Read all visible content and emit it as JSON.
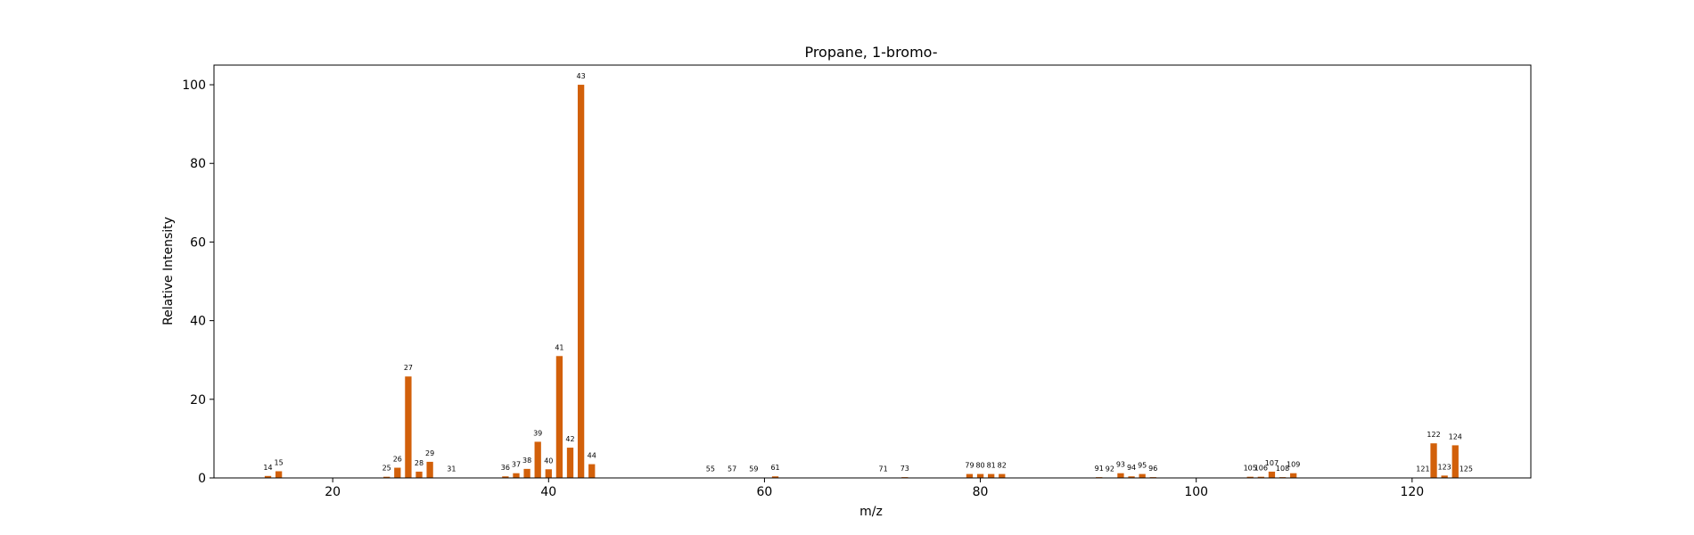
{
  "chart_data": {
    "type": "bar",
    "title": "Propane, 1-bromo-",
    "xlabel": "m/z",
    "ylabel": "Relative Intensity",
    "xlim": [
      9,
      131
    ],
    "ylim": [
      0,
      105
    ],
    "xticks": [
      20,
      40,
      60,
      80,
      100,
      120
    ],
    "yticks": [
      0,
      20,
      40,
      60,
      80,
      100
    ],
    "grid": false,
    "bar_color": "#d2600a",
    "x": [
      14,
      15,
      25,
      26,
      27,
      28,
      29,
      31,
      36,
      37,
      38,
      39,
      40,
      41,
      42,
      43,
      44,
      55,
      57,
      59,
      61,
      71,
      73,
      79,
      80,
      81,
      82,
      91,
      92,
      93,
      94,
      95,
      96,
      105,
      106,
      107,
      108,
      109,
      121,
      122,
      123,
      124,
      125
    ],
    "values": [
      0.5,
      1.7,
      0.3,
      2.6,
      25.8,
      1.6,
      4.1,
      0.1,
      0.4,
      1.2,
      2.3,
      9.2,
      2.2,
      31.0,
      7.7,
      100.0,
      3.5,
      0.1,
      0.1,
      0.1,
      0.4,
      0.1,
      0.2,
      1.0,
      1.0,
      1.0,
      1.0,
      0.2,
      0.1,
      1.2,
      0.4,
      1.0,
      0.2,
      0.3,
      0.3,
      1.6,
      0.2,
      1.2,
      0.1,
      8.8,
      0.6,
      8.3,
      0.1
    ],
    "labels": [
      "14",
      "15",
      "25",
      "26",
      "27",
      "28",
      "29",
      "31",
      "36",
      "37",
      "38",
      "39",
      "40",
      "41",
      "42",
      "43",
      "44",
      "55",
      "57",
      "59",
      "61",
      "71",
      "73",
      "79",
      "80",
      "81",
      "82",
      "91",
      "92",
      "93",
      "94",
      "95",
      "96",
      "105",
      "106",
      "107",
      "108",
      "109",
      "121",
      "122",
      "123",
      "124",
      "125"
    ]
  }
}
